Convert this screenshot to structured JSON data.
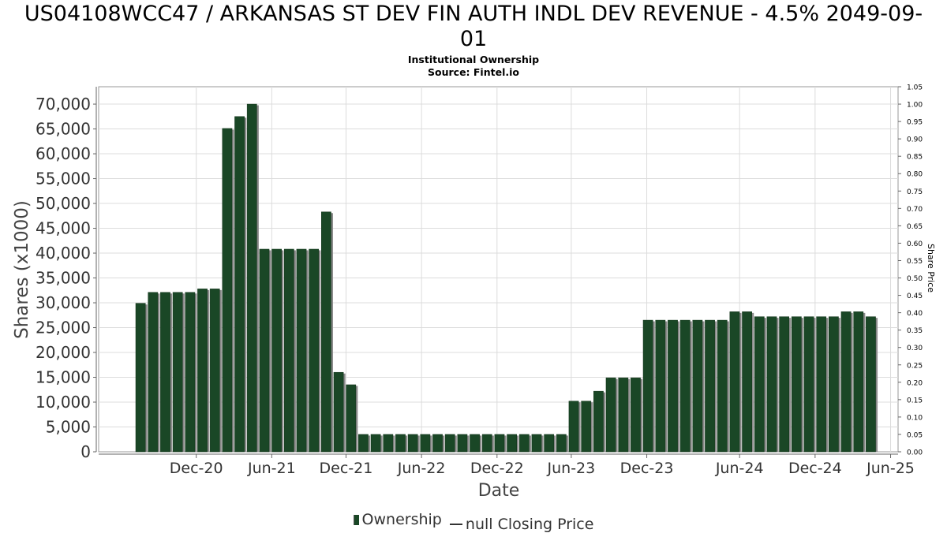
{
  "chart_data": {
    "type": "bar",
    "title": "US04108WCC47 / ARKANSAS ST DEV FIN AUTH INDL DEV REVENUE - 4.5% 2049-09-\n01",
    "subtitle_lines": [
      "Institutional Ownership",
      "Source: Fintel.io"
    ],
    "xlabel": "Date",
    "ylabel": "Shares (x1000)",
    "y2label": "Share Price",
    "ylim": [
      0,
      73500
    ],
    "y_ticks": [
      "0",
      "5,000",
      "10,000",
      "15,000",
      "20,000",
      "25,000",
      "30,000",
      "35,000",
      "40,000",
      "45,000",
      "50,000",
      "55,000",
      "60,000",
      "65,000",
      "70,000"
    ],
    "y_tick_values": [
      0,
      5000,
      10000,
      15000,
      20000,
      25000,
      30000,
      35000,
      40000,
      45000,
      50000,
      55000,
      60000,
      65000,
      70000
    ],
    "y2lim": [
      0,
      1.05
    ],
    "y2_ticks": [
      "0.00",
      "0.05",
      "0.10",
      "0.15",
      "0.20",
      "0.25",
      "0.30",
      "0.35",
      "0.40",
      "0.45",
      "0.50",
      "0.55",
      "0.60",
      "0.65",
      "0.70",
      "0.75",
      "0.80",
      "0.85",
      "0.90",
      "0.95",
      "1.00",
      "1.05"
    ],
    "y2_tick_values": [
      0,
      0.05,
      0.1,
      0.15,
      0.2,
      0.25,
      0.3,
      0.35,
      0.4,
      0.45,
      0.5,
      0.55,
      0.6,
      0.65,
      0.7,
      0.75,
      0.8,
      0.85,
      0.9,
      0.95,
      1.0,
      1.05
    ],
    "x_ticks": [
      "Dec-20",
      "Jun-21",
      "Dec-21",
      "Jun-22",
      "Dec-22",
      "Jun-23",
      "Dec-23",
      "Jun-24",
      "Dec-24",
      "Jun-25"
    ],
    "x_tick_index": [
      4.5,
      10.6,
      16.6,
      22.7,
      28.8,
      34.8,
      40.9,
      48.4,
      54.5,
      60.6
    ],
    "grid": true,
    "legend_position": "bottom",
    "series": [
      {
        "name": "Ownership",
        "color": "#1a4726",
        "values": [
          29900,
          32100,
          32100,
          32100,
          32100,
          32800,
          32800,
          65100,
          67500,
          70000,
          40800,
          40800,
          40800,
          40800,
          40800,
          48300,
          16000,
          13500,
          3500,
          3500,
          3500,
          3500,
          3500,
          3500,
          3500,
          3500,
          3500,
          3500,
          3500,
          3500,
          3500,
          3500,
          3500,
          3500,
          3500,
          10200,
          10200,
          12200,
          14900,
          14900,
          14900,
          26500,
          26500,
          26500,
          26500,
          26500,
          26500,
          26500,
          28200,
          28200,
          27200,
          27200,
          27200,
          27200,
          27200,
          27200,
          27200,
          28200,
          28200,
          27200
        ]
      },
      {
        "name": "null Closing Price",
        "color": "#333333",
        "values": []
      }
    ]
  },
  "legend": {
    "items": [
      {
        "label": "Ownership"
      },
      {
        "label": "null Closing Price"
      }
    ]
  }
}
